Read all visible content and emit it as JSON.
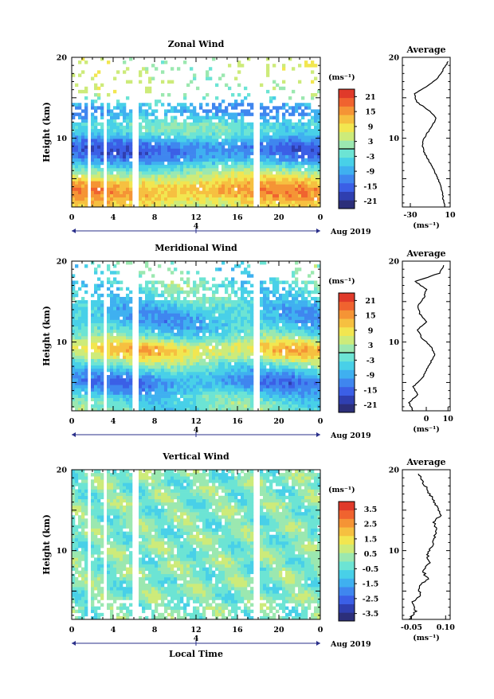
{
  "common": {
    "time_ticks": [
      "0",
      "4",
      "8",
      "12",
      "16",
      "20",
      "0"
    ],
    "height_ticks": [
      "20",
      "10"
    ],
    "height_axis_label": "Height (km)",
    "date_label": "4",
    "month_label": "Aug 2019",
    "unit_label": "(ms⁻¹)",
    "average_title": "Average",
    "xlabel": "Local Time"
  },
  "colors": {
    "scale": [
      "#2c2f7a",
      "#2f3fb0",
      "#3b5fe6",
      "#3f86ef",
      "#3fb0f0",
      "#48d0e8",
      "#6ce4d4",
      "#9be8b0",
      "#cdeb7a",
      "#f2e650",
      "#f6c040",
      "#f59435",
      "#f0632f",
      "#e03a2a"
    ],
    "missing": "#ffffff",
    "contour": "#000000"
  },
  "chart_data": [
    {
      "type": "heatmap",
      "title": "Zonal Wind",
      "ylabel": "Height (km)",
      "xlabel": "",
      "xlim": [
        0,
        24
      ],
      "ylim": [
        1.5,
        20
      ],
      "colorbar": {
        "ticks": [
          "21",
          "15",
          "9",
          "3",
          "-3",
          "-9",
          "-15",
          "-21"
        ],
        "range": [
          -24,
          24
        ]
      },
      "profile": {
        "title": "Average",
        "xticks": [
          "-30",
          "10"
        ],
        "xlim": [
          -38,
          10
        ],
        "height": [
          1.5,
          2.5,
          3.5,
          4.5,
          5.5,
          6.5,
          7.5,
          8.5,
          9.5,
          10.5,
          11.5,
          12.5,
          13.5,
          14.5,
          15.5,
          16.5,
          17.5,
          18.5,
          19.5
        ],
        "values": [
          5,
          3,
          2,
          -1,
          -4,
          -8,
          -13,
          -17,
          -18,
          -14,
          -8,
          -4,
          -12,
          -24,
          -26,
          -12,
          -2,
          3,
          8
        ]
      }
    },
    {
      "type": "heatmap",
      "title": "Meridional Wind",
      "ylabel": "Height (km)",
      "xlabel": "",
      "xlim": [
        0,
        24
      ],
      "ylim": [
        1.5,
        20
      ],
      "colorbar": {
        "ticks": [
          "21",
          "15",
          "9",
          "3",
          "-3",
          "-9",
          "-15",
          "-21"
        ],
        "range": [
          -24,
          24
        ]
      },
      "profile": {
        "title": "Average",
        "xticks": [
          "0",
          "10"
        ],
        "xlim": [
          -11,
          11
        ],
        "height": [
          1.5,
          2.5,
          3.5,
          4.5,
          5.5,
          6.5,
          7.5,
          8.5,
          9.5,
          10.5,
          11.5,
          12.5,
          13.5,
          14.5,
          15.5,
          16.5,
          17.5,
          18.5,
          19.5
        ],
        "values": [
          -6,
          -8,
          -4,
          -6,
          -2,
          0,
          2,
          4,
          2,
          -2,
          -4,
          0,
          -3,
          -4,
          -1,
          0,
          -5,
          6,
          8
        ]
      }
    },
    {
      "type": "heatmap",
      "title": "Vertical Wind",
      "ylabel": "Height (km)",
      "xlabel": "Local Time",
      "xlim": [
        0,
        24
      ],
      "ylim": [
        1.5,
        20
      ],
      "colorbar": {
        "ticks": [
          "3.5",
          "2.5",
          "1.5",
          "0.5",
          "-0.5",
          "-1.5",
          "-2.5",
          "-3.5"
        ],
        "range": [
          -4,
          4
        ]
      },
      "profile": {
        "title": "Average",
        "xticks": [
          "-0.05",
          "0.10"
        ],
        "xlim": [
          -0.09,
          0.12
        ],
        "height": [
          1.5,
          2.5,
          3.5,
          4.5,
          5.5,
          6.5,
          7.5,
          8.5,
          9.5,
          10.5,
          11.5,
          12.5,
          13.5,
          14.5,
          15.5,
          16.5,
          17.5,
          18.5,
          19.5
        ],
        "values": [
          -0.06,
          -0.03,
          -0.05,
          -0.01,
          -0.02,
          0.02,
          0.0,
          0.03,
          0.02,
          0.04,
          0.05,
          0.06,
          0.05,
          0.08,
          0.06,
          0.04,
          0.02,
          0.0,
          -0.02
        ]
      }
    }
  ]
}
